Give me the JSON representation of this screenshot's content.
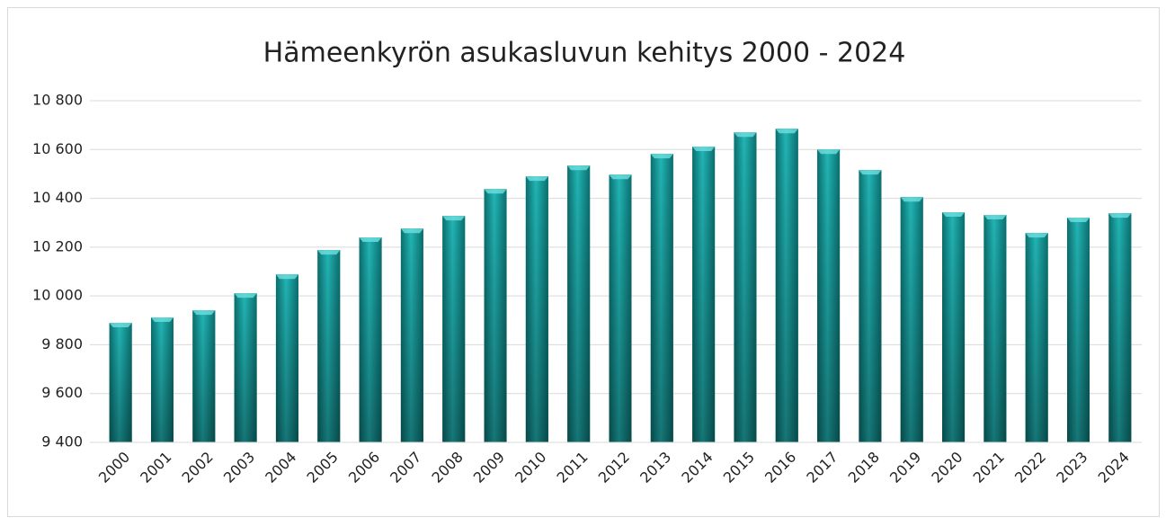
{
  "chart_data": {
    "type": "bar",
    "title": "Hämeenkyrön asukasluvun kehitys 2000 - 2024",
    "categories": [
      "2000",
      "2001",
      "2002",
      "2003",
      "2004",
      "2005",
      "2006",
      "2007",
      "2008",
      "2009",
      "2010",
      "2011",
      "2012",
      "2013",
      "2014",
      "2015",
      "2016",
      "2017",
      "2018",
      "2019",
      "2020",
      "2021",
      "2022",
      "2023",
      "2024"
    ],
    "values": [
      9890,
      9912,
      9941,
      10011,
      10088,
      10188,
      10240,
      10276,
      10328,
      10438,
      10490,
      10534,
      10497,
      10582,
      10612,
      10670,
      10685,
      10600,
      10516,
      10405,
      10343,
      10332,
      10258,
      10321,
      10339
    ],
    "color": "#169c9c",
    "ylim": [
      9400,
      10800
    ],
    "yticks": [
      {
        "value": 9400,
        "label": "9 400"
      },
      {
        "value": 9600,
        "label": "9 600"
      },
      {
        "value": 9800,
        "label": "9 800"
      },
      {
        "value": 10000,
        "label": "10 000"
      },
      {
        "value": 10200,
        "label": "10 200"
      },
      {
        "value": 10400,
        "label": "10 400"
      },
      {
        "value": 10600,
        "label": "10 600"
      },
      {
        "value": 10800,
        "label": "10 800"
      }
    ],
    "grid": true
  }
}
